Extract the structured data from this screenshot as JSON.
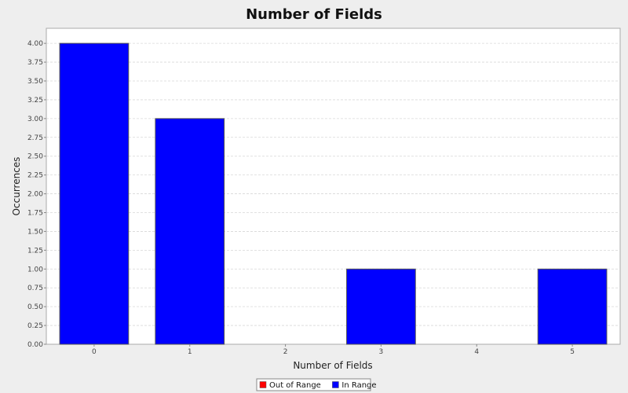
{
  "chart_data": {
    "type": "bar",
    "title": "Number of Fields",
    "xlabel": "Number of Fields",
    "ylabel": "Occurrences",
    "categories": [
      "0",
      "1",
      "2",
      "3",
      "4",
      "5"
    ],
    "series": [
      {
        "name": "Out of Range",
        "color": "#ff0000",
        "values": [
          0,
          0,
          0,
          0,
          0,
          0
        ]
      },
      {
        "name": "In Range",
        "color": "#0000ff",
        "values": [
          4,
          3,
          0,
          1,
          0,
          1
        ]
      }
    ],
    "ylim": [
      0,
      4.2
    ],
    "yticks": [
      "0.00",
      "0.25",
      "0.50",
      "0.75",
      "1.00",
      "1.25",
      "1.50",
      "1.75",
      "2.00",
      "2.25",
      "2.50",
      "2.75",
      "3.00",
      "3.25",
      "3.50",
      "3.75",
      "4.00"
    ],
    "grid": true,
    "legend_position": "bottom"
  }
}
